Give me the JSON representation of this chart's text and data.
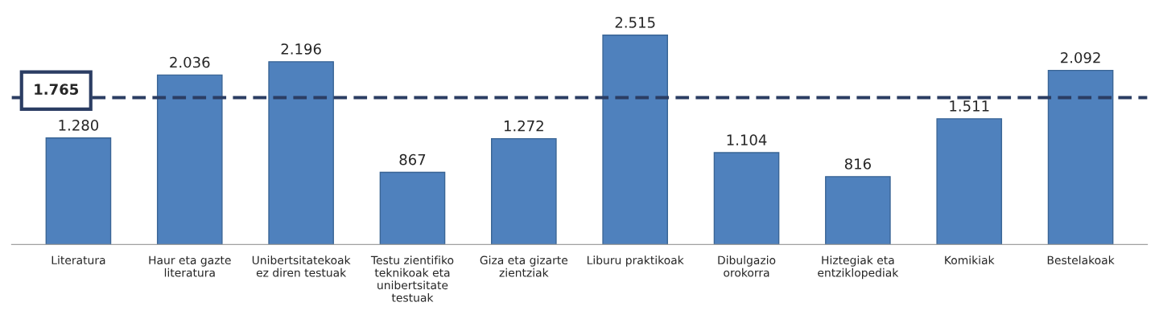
{
  "chart_data": {
    "type": "bar",
    "categories": [
      "Literatura",
      "Haur eta gazte literatura",
      "Unibertsitatekoak ez diren testuak",
      "Testu zientifiko teknikoak eta unibertsitate testuak",
      "Giza eta gizarte zientziak",
      "Liburu praktikoak",
      "Dibulgazio orokorra",
      "Hiztegiak eta entziklopediak",
      "Komikiak",
      "Bestelakoak"
    ],
    "values": [
      1280,
      2036,
      2196,
      867,
      1272,
      2515,
      1104,
      816,
      1511,
      2092
    ],
    "value_labels": [
      "1.280",
      "2.036",
      "2.196",
      "867",
      "1.272",
      "2.515",
      "1.104",
      "816",
      "1.511",
      "2.092"
    ],
    "color": "#4f81bd",
    "ref_lines": [
      {
        "axis": "y",
        "value": 1765,
        "label": "1.765",
        "color": "#2b3d63",
        "line_style": "dashed"
      }
    ],
    "grid": false,
    "legend": false
  }
}
